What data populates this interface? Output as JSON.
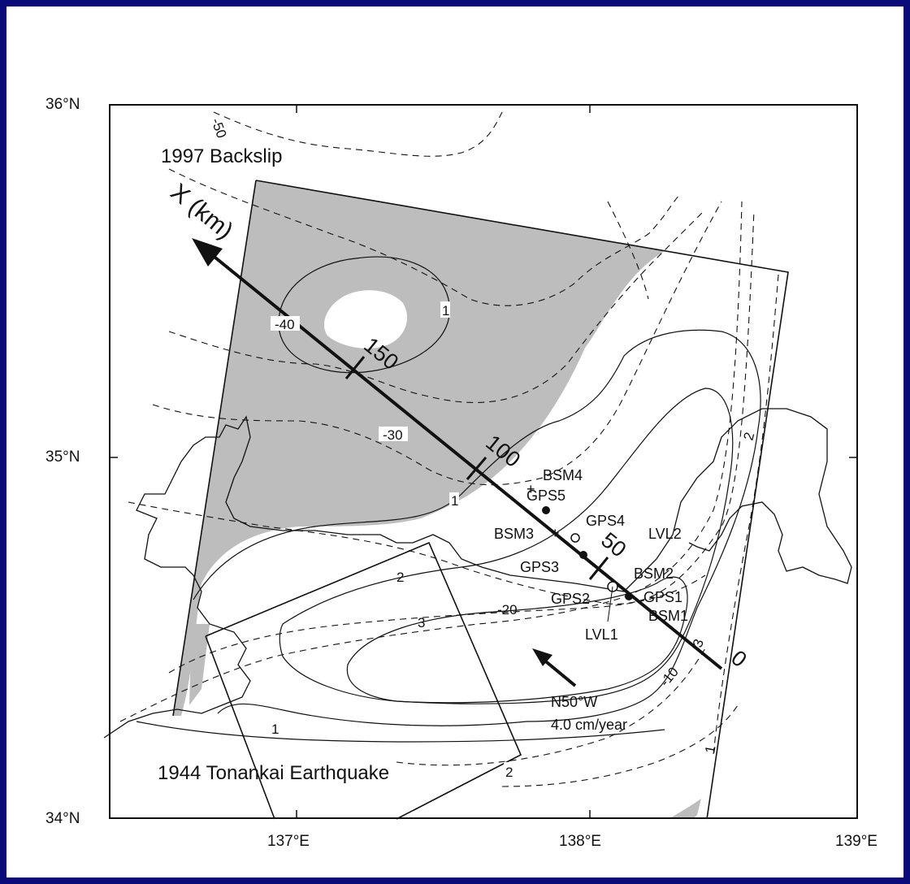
{
  "map": {
    "title": "1997 Backslip",
    "subtitle_rupture": "1944 Tonankai Earthquake",
    "lat_labels": [
      "36°N",
      "35°N",
      "34°N"
    ],
    "lon_labels": [
      "137°E",
      "138°E",
      "139°E"
    ],
    "profile_axis_label": "X (km)",
    "profile_distances": [
      "150",
      "100",
      "50",
      "0"
    ],
    "stations": [
      {
        "name": "BSM4"
      },
      {
        "name": "GPS5"
      },
      {
        "name": "GPS4"
      },
      {
        "name": "BSM3"
      },
      {
        "name": "LVL2"
      },
      {
        "name": "GPS3"
      },
      {
        "name": "BSM2"
      },
      {
        "name": "GPS2"
      },
      {
        "name": "GPS1"
      },
      {
        "name": "BSM1"
      },
      {
        "name": "LVL1"
      }
    ],
    "contour_values": [
      "-50",
      "-40",
      "-30",
      "-20",
      "-10",
      "1",
      "1",
      "2",
      "3",
      "1",
      "2",
      "3",
      "1",
      "2"
    ],
    "plate_motion": {
      "direction": "N50°W",
      "rate": "4.0 cm/year"
    },
    "colors": {
      "frame": "#0a0a78",
      "shaded_region": "#bdbdbd",
      "line": "#111111"
    }
  }
}
